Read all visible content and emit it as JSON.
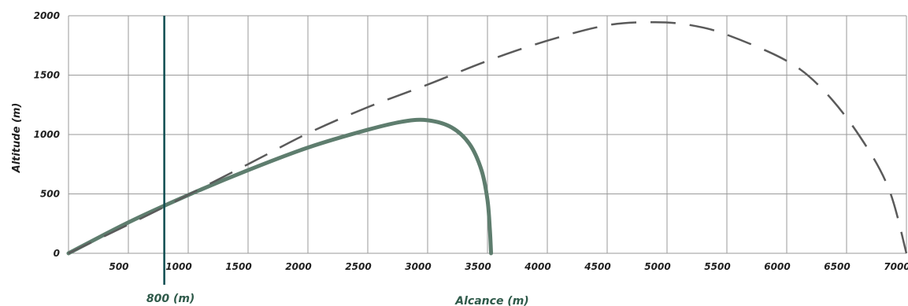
{
  "chart_data": {
    "type": "line",
    "xlabel": "Alcance (m)",
    "ylabel": "Altitude  (m)",
    "xlim": [
      0,
      7000
    ],
    "ylim": [
      0,
      2000
    ],
    "x_ticks": [
      {
        "value": 500,
        "label": "500"
      },
      {
        "value": 1000,
        "label": "1000"
      },
      {
        "value": 1500,
        "label": "1500"
      },
      {
        "value": 2000,
        "label": "2000"
      },
      {
        "value": 2500,
        "label": "2500"
      },
      {
        "value": 3000,
        "label": "3000"
      },
      {
        "value": 3500,
        "label": "3500"
      },
      {
        "value": 4000,
        "label": "4000"
      },
      {
        "value": 4500,
        "label": "4500"
      },
      {
        "value": 5000,
        "label": "5000"
      },
      {
        "value": 5500,
        "label": "5500"
      },
      {
        "value": 6000,
        "label": "6000"
      },
      {
        "value": 6500,
        "label": "6500"
      },
      {
        "value": 7000,
        "label": "7000"
      }
    ],
    "y_ticks": [
      {
        "value": 0,
        "label": "0"
      },
      {
        "value": 500,
        "label": "500"
      },
      {
        "value": 1000,
        "label": "1000"
      },
      {
        "value": 1500,
        "label": "1500"
      },
      {
        "value": 2000,
        "label": "2000"
      }
    ],
    "grid": true,
    "marker": {
      "x": 800,
      "label": "800 (m)",
      "color": "#0e4c50"
    },
    "series": [
      {
        "style": "solid",
        "color": "#5e7d6e",
        "points": [
          [
            0,
            0
          ],
          [
            500,
            260
          ],
          [
            1000,
            490
          ],
          [
            1500,
            700
          ],
          [
            2000,
            890
          ],
          [
            2500,
            1040
          ],
          [
            2800,
            1110
          ],
          [
            3000,
            1120
          ],
          [
            3200,
            1060
          ],
          [
            3350,
            920
          ],
          [
            3450,
            700
          ],
          [
            3500,
            450
          ],
          [
            3520,
            200
          ],
          [
            3530,
            0
          ]
        ]
      },
      {
        "style": "dashed",
        "color": "#5a5a5a",
        "points": [
          [
            0,
            0
          ],
          [
            700,
            340
          ],
          [
            1500,
            750
          ],
          [
            2000,
            1010
          ],
          [
            2500,
            1230
          ],
          [
            3000,
            1420
          ],
          [
            3500,
            1620
          ],
          [
            4000,
            1790
          ],
          [
            4500,
            1920
          ],
          [
            4900,
            1945
          ],
          [
            5200,
            1920
          ],
          [
            5500,
            1840
          ],
          [
            6000,
            1620
          ],
          [
            6300,
            1380
          ],
          [
            6600,
            1000
          ],
          [
            6850,
            550
          ],
          [
            7000,
            0
          ]
        ]
      }
    ]
  }
}
